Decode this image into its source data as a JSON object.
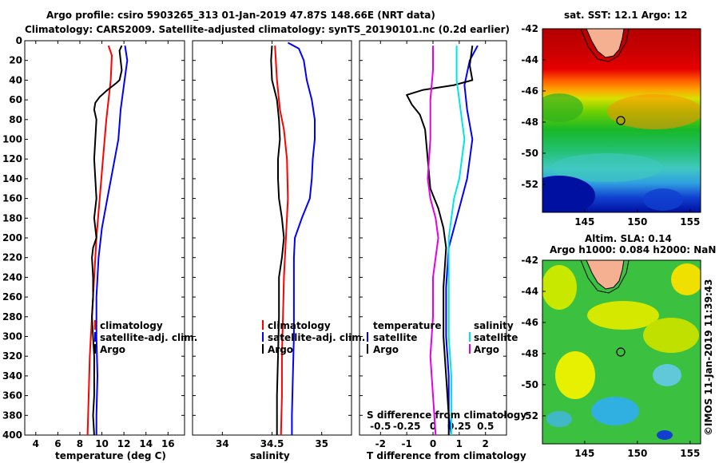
{
  "title_line1": "Argo profile: csiro 5903265_313 01-Jan-2019 47.87S 148.66E (NRT data)",
  "title_line2": "Climatology: CARS2009. Satellite-adjusted climatology: synTS_20190101.nc (0.2d earlier)",
  "map1_title": "sat. SST: 12.1 Argo: 12",
  "map2_title1": "Altim. SLA: 0.14",
  "map2_title2": "Argo h1000: 0.084 h2000: NaN",
  "credit": "©IMOS 11-Jan-2019 11:39:43",
  "colors": {
    "argo": "#000000",
    "clim": "#ff0000",
    "satclim": "#0000ff",
    "sal_sat": "#00e5e5",
    "sal_argo": "#e600e6"
  },
  "chart_data": [
    {
      "type": "line",
      "name": "temperature",
      "xlabel": "temperature (deg C)",
      "xlim": [
        3,
        17.5
      ],
      "ylim": [
        0,
        400
      ],
      "xticks": [
        4,
        6,
        8,
        10,
        12,
        14,
        16
      ],
      "yticks": [
        0,
        20,
        40,
        60,
        80,
        100,
        120,
        140,
        160,
        180,
        200,
        220,
        240,
        260,
        280,
        300,
        320,
        340,
        360,
        380,
        400
      ],
      "legend": [
        "climatology",
        "satellite-adj. clim.",
        "Argo"
      ],
      "series": [
        {
          "name": "climatology",
          "color": "#ff0000",
          "points": [
            [
              10.6,
              5
            ],
            [
              10.9,
              15
            ],
            [
              10.8,
              40
            ],
            [
              10.4,
              80
            ],
            [
              10.1,
              120
            ],
            [
              9.8,
              160
            ],
            [
              9.5,
              200
            ],
            [
              9.3,
              240
            ],
            [
              9.1,
              280
            ],
            [
              8.9,
              320
            ],
            [
              8.8,
              360
            ],
            [
              8.7,
              400
            ]
          ]
        },
        {
          "name": "satellite-adj. clim.",
          "color": "#0000ff",
          "points": [
            [
              12.1,
              5
            ],
            [
              12.3,
              20
            ],
            [
              12.0,
              45
            ],
            [
              11.7,
              70
            ],
            [
              11.5,
              100
            ],
            [
              11.0,
              130
            ],
            [
              10.5,
              160
            ],
            [
              10.0,
              190
            ],
            [
              9.7,
              220
            ],
            [
              9.5,
              260
            ],
            [
              9.5,
              300
            ],
            [
              9.6,
              340
            ],
            [
              9.5,
              380
            ],
            [
              9.5,
              400
            ]
          ]
        },
        {
          "name": "Argo",
          "color": "#000000",
          "points": [
            [
              11.8,
              5
            ],
            [
              11.6,
              10
            ],
            [
              11.7,
              20
            ],
            [
              11.8,
              30
            ],
            [
              11.6,
              40
            ],
            [
              11.3,
              43
            ],
            [
              10.5,
              50
            ],
            [
              9.8,
              57
            ],
            [
              9.4,
              63
            ],
            [
              9.3,
              70
            ],
            [
              9.5,
              80
            ],
            [
              9.4,
              100
            ],
            [
              9.3,
              120
            ],
            [
              9.4,
              140
            ],
            [
              9.5,
              160
            ],
            [
              9.3,
              180
            ],
            [
              9.5,
              200
            ],
            [
              9.2,
              210
            ],
            [
              9.1,
              220
            ],
            [
              9.2,
              240
            ],
            [
              9.2,
              260
            ],
            [
              9.1,
              280
            ],
            [
              9.2,
              300
            ],
            [
              9.3,
              320
            ],
            [
              9.3,
              340
            ],
            [
              9.3,
              360
            ],
            [
              9.2,
              380
            ],
            [
              9.3,
              400
            ]
          ]
        }
      ]
    },
    {
      "type": "line",
      "name": "salinity",
      "xlabel": "salinity",
      "xlim": [
        33.7,
        35.3
      ],
      "ylim": [
        0,
        400
      ],
      "xticks": [
        34,
        34.5,
        35
      ],
      "xticklabels": [
        "34",
        "34.5",
        "35"
      ],
      "legend": [
        "climatology",
        "satellite-adj. clim.",
        "Argo"
      ],
      "series": [
        {
          "name": "climatology",
          "color": "#ff0000",
          "points": [
            [
              34.53,
              5
            ],
            [
              34.55,
              40
            ],
            [
              34.58,
              70
            ],
            [
              34.62,
              90
            ],
            [
              34.65,
              120
            ],
            [
              34.66,
              160
            ],
            [
              34.64,
              200
            ],
            [
              34.62,
              240
            ],
            [
              34.61,
              280
            ],
            [
              34.6,
              320
            ],
            [
              34.6,
              360
            ],
            [
              34.59,
              400
            ]
          ]
        },
        {
          "name": "satellite-adj. clim.",
          "color": "#0000ff",
          "points": [
            [
              34.66,
              2
            ],
            [
              34.77,
              8
            ],
            [
              34.82,
              20
            ],
            [
              34.85,
              40
            ],
            [
              34.9,
              60
            ],
            [
              34.93,
              80
            ],
            [
              34.93,
              100
            ],
            [
              34.91,
              120
            ],
            [
              34.9,
              140
            ],
            [
              34.88,
              160
            ],
            [
              34.8,
              180
            ],
            [
              34.73,
              200
            ],
            [
              34.72,
              220
            ],
            [
              34.72,
              260
            ],
            [
              34.72,
              300
            ],
            [
              34.71,
              340
            ],
            [
              34.7,
              380
            ],
            [
              34.7,
              400
            ]
          ]
        },
        {
          "name": "Argo",
          "color": "#000000",
          "points": [
            [
              34.5,
              5
            ],
            [
              34.49,
              20
            ],
            [
              34.5,
              40
            ],
            [
              34.55,
              60
            ],
            [
              34.57,
              80
            ],
            [
              34.58,
              100
            ],
            [
              34.56,
              120
            ],
            [
              34.56,
              140
            ],
            [
              34.57,
              160
            ],
            [
              34.6,
              180
            ],
            [
              34.62,
              200
            ],
            [
              34.6,
              220
            ],
            [
              34.57,
              240
            ],
            [
              34.57,
              280
            ],
            [
              34.56,
              320
            ],
            [
              34.55,
              360
            ],
            [
              34.55,
              400
            ]
          ]
        }
      ]
    },
    {
      "type": "line",
      "name": "difference",
      "xlabel": "T difference from climatology",
      "xlabel2": "S difference from climatology",
      "xlim": [
        -2.8,
        2.8
      ],
      "ylim": [
        0,
        400
      ],
      "xticks": [
        -2,
        -1,
        0,
        1,
        2
      ],
      "s_xticks": [
        -0.5,
        -0.25,
        0,
        0.25,
        0.5
      ],
      "s_ticklabels": [
        "-0.5",
        "-0.25",
        "0",
        "0.25",
        "0.5"
      ],
      "legend_t": [
        "temperature",
        "satellite",
        "Argo"
      ],
      "legend_s": [
        "salinity",
        "satellite",
        "Argo"
      ],
      "series": [
        {
          "name": "temperature satellite",
          "color": "#0000ff",
          "points": [
            [
              1.7,
              5
            ],
            [
              1.4,
              20
            ],
            [
              1.2,
              45
            ],
            [
              1.3,
              70
            ],
            [
              1.5,
              100
            ],
            [
              1.3,
              140
            ],
            [
              0.9,
              180
            ],
            [
              0.6,
              210
            ],
            [
              0.5,
              250
            ],
            [
              0.5,
              300
            ],
            [
              0.6,
              340
            ],
            [
              0.6,
              380
            ],
            [
              0.7,
              400
            ]
          ]
        },
        {
          "name": "temperature Argo",
          "color": "#000000",
          "points": [
            [
              1.5,
              5
            ],
            [
              1.4,
              25
            ],
            [
              1.5,
              40
            ],
            [
              0.8,
              45
            ],
            [
              -0.4,
              50
            ],
            [
              -1.0,
              55
            ],
            [
              -0.8,
              65
            ],
            [
              -0.5,
              75
            ],
            [
              -0.3,
              90
            ],
            [
              -0.2,
              120
            ],
            [
              -0.1,
              150
            ],
            [
              0.2,
              170
            ],
            [
              0.4,
              190
            ],
            [
              0.5,
              210
            ],
            [
              0.4,
              250
            ],
            [
              0.4,
              300
            ],
            [
              0.5,
              340
            ],
            [
              0.6,
              380
            ],
            [
              0.6,
              400
            ]
          ]
        },
        {
          "name": "salinity satellite",
          "color": "#00e5e5",
          "points": [
            [
              0.9,
              5
            ],
            [
              0.9,
              20
            ],
            [
              0.9,
              40
            ],
            [
              1.0,
              60
            ],
            [
              1.1,
              80
            ],
            [
              1.2,
              100
            ],
            [
              1.1,
              120
            ],
            [
              1.0,
              140
            ],
            [
              0.8,
              160
            ],
            [
              0.7,
              180
            ],
            [
              0.6,
              200
            ],
            [
              0.6,
              240
            ],
            [
              0.6,
              300
            ],
            [
              0.7,
              340
            ],
            [
              0.7,
              380
            ],
            [
              0.7,
              400
            ]
          ]
        },
        {
          "name": "salinity Argo",
          "color": "#e600e6",
          "points": [
            [
              0.0,
              5
            ],
            [
              0.0,
              30
            ],
            [
              -0.1,
              60
            ],
            [
              -0.1,
              100
            ],
            [
              -0.2,
              140
            ],
            [
              -0.1,
              160
            ],
            [
              0.1,
              180
            ],
            [
              0.2,
              200
            ],
            [
              0.1,
              220
            ],
            [
              0.0,
              240
            ],
            [
              0.0,
              280
            ],
            [
              -0.1,
              320
            ],
            [
              0.0,
              360
            ],
            [
              0.1,
              400
            ]
          ]
        }
      ]
    },
    {
      "type": "heatmap",
      "name": "sst_map",
      "title": "sat. SST: 12.1 Argo: 12",
      "xlim": [
        141,
        156
      ],
      "ylim": [
        -53.8,
        -42
      ],
      "xticks": [
        145,
        150,
        155
      ],
      "yticks": [
        -42,
        -44,
        -46,
        -48,
        -50,
        -52
      ],
      "marker": {
        "lon": 148.66,
        "lat": -47.87
      }
    },
    {
      "type": "heatmap",
      "name": "sla_map",
      "title": "Altim. SLA: 0.14",
      "xlim": [
        141,
        156
      ],
      "ylim": [
        -53.8,
        -42
      ],
      "xticks": [
        145,
        150,
        155
      ],
      "yticks": [
        -42,
        -44,
        -46,
        -48,
        -50,
        -52
      ],
      "marker": {
        "lon": 148.66,
        "lat": -47.87
      }
    }
  ]
}
